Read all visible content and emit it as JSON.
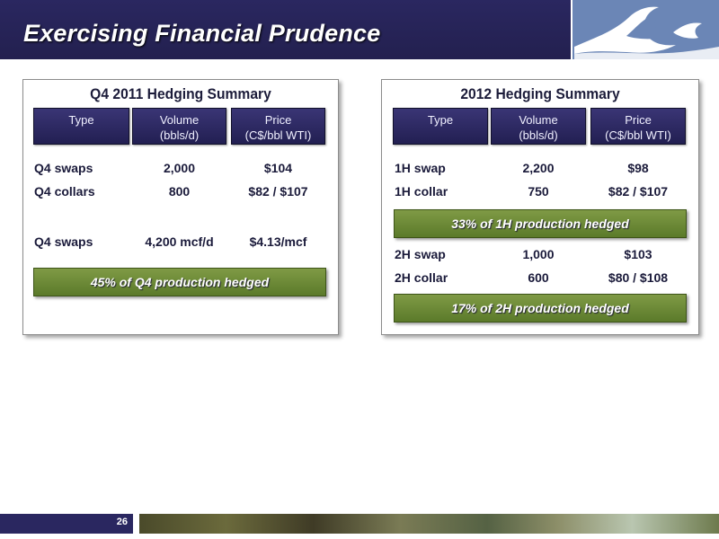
{
  "slide": {
    "title": "Exercising Financial Prudence",
    "page_number": "26"
  },
  "left_panel": {
    "title": "Q4 2011 Hedging Summary",
    "headers": [
      {
        "line1": "Type",
        "line2": ""
      },
      {
        "line1": "Volume",
        "line2": "(bbls/d)"
      },
      {
        "line1": "Price",
        "line2": "(C$/bbl WTI)"
      }
    ],
    "rows": [
      {
        "type": "Q4 swaps",
        "volume": "2,000",
        "price": "$104"
      },
      {
        "type": "Q4 collars",
        "volume": "800",
        "price": "$82 / $107"
      },
      {
        "type": "Q4 swaps",
        "volume": "4,200 mcf/d",
        "price": "$4.13/mcf"
      }
    ],
    "summary": "45% of  Q4 production hedged"
  },
  "right_panel": {
    "title": "2012 Hedging Summary",
    "headers": [
      {
        "line1": "Type",
        "line2": ""
      },
      {
        "line1": "Volume",
        "line2": "(bbls/d)"
      },
      {
        "line1": "Price",
        "line2": "(C$/bbl WTI)"
      }
    ],
    "rows": [
      {
        "type": "1H swap",
        "volume": "2,200",
        "price": "$98"
      },
      {
        "type": "1H collar",
        "volume": "750",
        "price": "$82 / $107"
      },
      {
        "type": "2H swap",
        "volume": "1,000",
        "price": "$103"
      },
      {
        "type": "2H collar",
        "volume": "600",
        "price": "$80 / $108"
      }
    ],
    "summary_1": "33% of 1H production hedged",
    "summary_2": "17% of  2H production hedged"
  },
  "colors": {
    "header_navy": "#2a2760",
    "bar_green": "#6e8a38",
    "logo_blue": "#6b86b6"
  },
  "icons": {
    "logo": "wave-logo-icon",
    "footer": "landscape-photo"
  }
}
